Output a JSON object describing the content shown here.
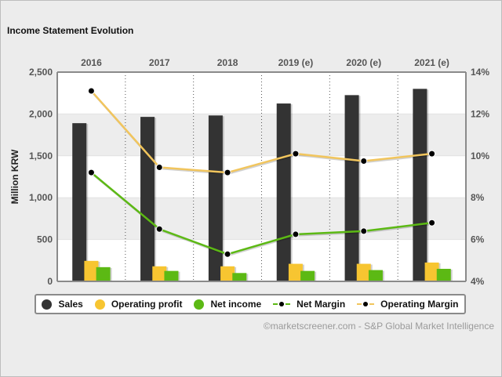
{
  "title": "Income Statement Evolution",
  "source": "©marketscreener.com - S&P Global Market Intelligence",
  "colors": {
    "sales": "#333333",
    "operating_profit": "#f7c531",
    "net_income": "#5cb914",
    "net_margin": "#5cb914",
    "operating_margin": "#f1c55d"
  },
  "chart_data": {
    "type": "bar",
    "categories": [
      "2016",
      "2017",
      "2018",
      "2019 (e)",
      "2020 (e)",
      "2021 (e)"
    ],
    "ylabel": "Million KRW",
    "ylim": [
      0,
      2500
    ],
    "yticks": [
      "0",
      "500",
      "1,000",
      "1,500",
      "2,000",
      "2,500"
    ],
    "y2lim": [
      4,
      14
    ],
    "y2ticks": [
      "4%",
      "6%",
      "8%",
      "10%",
      "12%",
      "14%"
    ],
    "series": [
      {
        "name": "Sales",
        "kind": "bar",
        "axis": "left",
        "values": [
          1890,
          1965,
          1982,
          2125,
          2225,
          2300
        ]
      },
      {
        "name": "Operating profit",
        "kind": "bar",
        "axis": "left",
        "values": [
          245,
          180,
          180,
          210,
          210,
          225
        ]
      },
      {
        "name": "Net income",
        "kind": "bar",
        "axis": "left",
        "values": [
          170,
          125,
          100,
          125,
          135,
          150
        ]
      },
      {
        "name": "Net Margin",
        "kind": "line",
        "axis": "right",
        "values": [
          9.2,
          6.5,
          5.3,
          6.25,
          6.4,
          6.8
        ]
      },
      {
        "name": "Operating Margin",
        "kind": "line",
        "axis": "right",
        "values": [
          13.1,
          9.45,
          9.2,
          10.1,
          9.75,
          10.1
        ]
      }
    ],
    "grid": true,
    "legend": "bottom"
  }
}
